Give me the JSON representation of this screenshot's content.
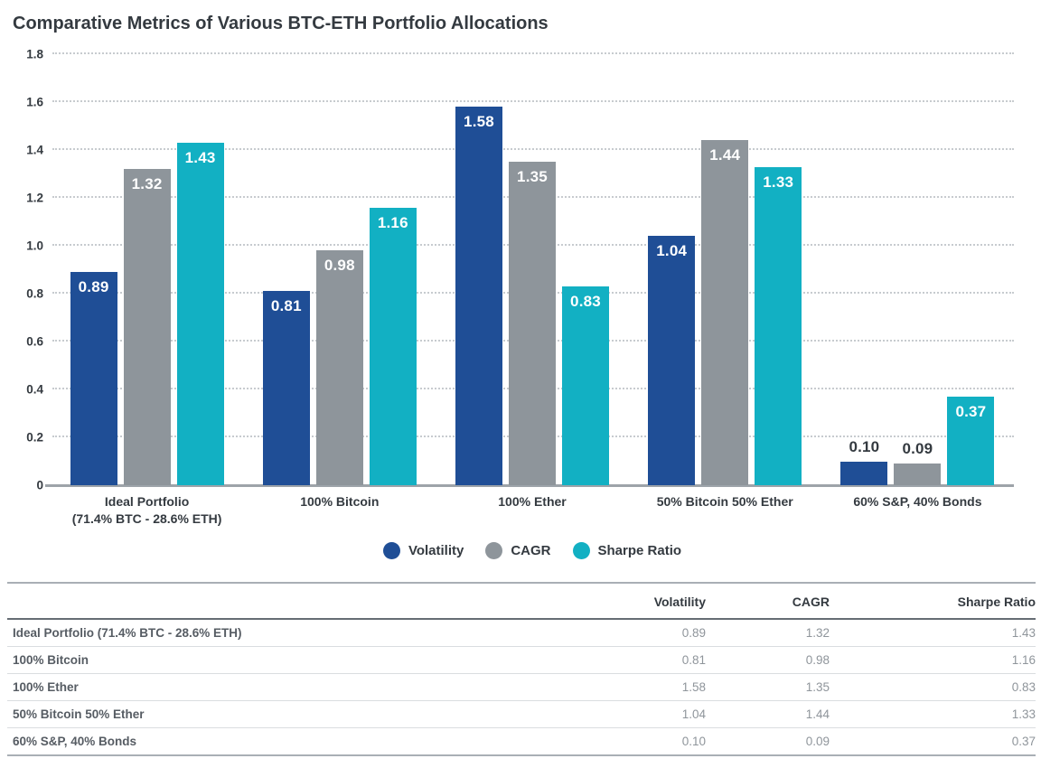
{
  "title": "Comparative Metrics of Various BTC-ETH Portfolio Allocations",
  "colors": {
    "volatility": "#1f4e96",
    "cagr": "#8e959b",
    "sharpe_ratio": "#12b0c3",
    "text_dark": "#343a40",
    "gridline": "#c7cbcf",
    "baseline": "#9da3a9",
    "table_number": "#8f959b"
  },
  "chart_data": {
    "type": "bar",
    "title": "Comparative Metrics of Various BTC-ETH Portfolio Allocations",
    "categories": [
      "Ideal Portfolio\n(71.4% BTC - 28.6% ETH)",
      "100% Bitcoin",
      "100% Ether",
      "50% Bitcoin 50% Ether",
      "60% S&P, 40% Bonds"
    ],
    "series": [
      {
        "name": "Volatility",
        "color": "#1f4e96",
        "values": [
          0.89,
          0.81,
          1.58,
          1.04,
          0.1
        ]
      },
      {
        "name": "CAGR",
        "color": "#8e959b",
        "values": [
          1.32,
          0.98,
          1.35,
          1.44,
          0.09
        ]
      },
      {
        "name": "Sharpe Ratio",
        "color": "#12b0c3",
        "values": [
          1.43,
          1.16,
          0.83,
          1.33,
          0.37
        ]
      }
    ],
    "xlabel": "",
    "ylabel": "",
    "ylim": [
      0,
      1.8
    ],
    "ytick_step": 0.2,
    "yticks": [
      "1.8",
      "1.6",
      "1.4",
      "1.2",
      "1.0",
      "0.8",
      "0.6",
      "0.4",
      "0.2",
      "0"
    ],
    "grid": "horizontal-dotted",
    "legend_position": "bottom",
    "bar_label_format": "2-decimals"
  },
  "table": {
    "headers": [
      "",
      "Volatility",
      "CAGR",
      "Sharpe Ratio"
    ],
    "rows": [
      {
        "label": "Ideal Portfolio (71.4% BTC - 28.6% ETH)",
        "values": [
          "0.89",
          "1.32",
          "1.43"
        ]
      },
      {
        "label": "100% Bitcoin",
        "values": [
          "0.81",
          "0.98",
          "1.16"
        ]
      },
      {
        "label": "100% Ether",
        "values": [
          "1.58",
          "1.35",
          "0.83"
        ]
      },
      {
        "label": "50% Bitcoin 50% Ether",
        "values": [
          "1.04",
          "1.44",
          "1.33"
        ]
      },
      {
        "label": "60% S&P, 40% Bonds",
        "values": [
          "0.10",
          "0.09",
          "0.37"
        ]
      }
    ]
  }
}
